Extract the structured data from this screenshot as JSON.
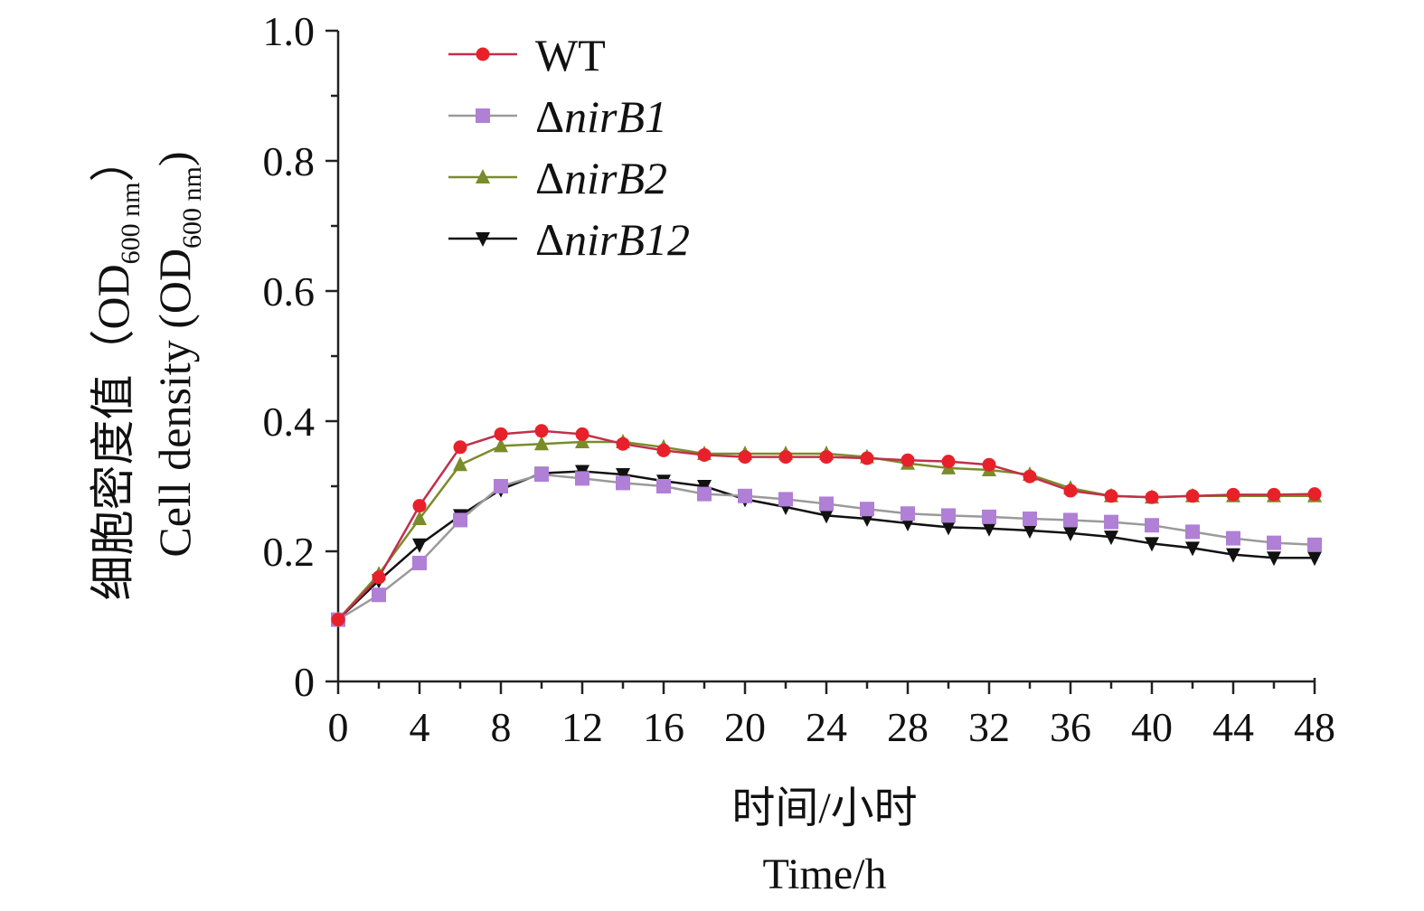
{
  "chart_data": {
    "type": "line",
    "xlabel_cn": "时间/小时",
    "xlabel_en": "Time/h",
    "ylabel_cn": "细胞密度值（OD",
    "ylabel_cn_sub": "600 nm",
    "ylabel_cn_end": "）",
    "ylabel_en": "Cell density (OD",
    "ylabel_en_sub": "600 nm",
    "ylabel_en_end": ")",
    "xlim": [
      0,
      48
    ],
    "ylim": [
      0,
      1.0
    ],
    "x_ticks": [
      0,
      4,
      8,
      12,
      16,
      20,
      24,
      28,
      32,
      36,
      40,
      44,
      48
    ],
    "y_ticks": [
      0,
      0.2,
      0.4,
      0.6,
      0.8,
      1.0
    ],
    "y_tick_labels": [
      "0",
      "0.2",
      "0.4",
      "0.6",
      "0.8",
      "1.0"
    ],
    "legend_position": "top-left",
    "grid": false,
    "x": [
      0,
      2,
      4,
      6,
      8,
      10,
      12,
      14,
      16,
      18,
      20,
      22,
      24,
      26,
      28,
      30,
      32,
      34,
      36,
      38,
      40,
      42,
      44,
      46,
      48
    ],
    "series": [
      {
        "name_prefix": "Δ",
        "name": "WT",
        "italic": false,
        "color": "#e8202a",
        "line_color": "#c0304a",
        "marker": "circle",
        "values": [
          0.095,
          0.16,
          0.27,
          0.36,
          0.38,
          0.385,
          0.38,
          0.365,
          0.355,
          0.348,
          0.345,
          0.345,
          0.345,
          0.343,
          0.34,
          0.338,
          0.333,
          0.315,
          0.293,
          0.285,
          0.283,
          0.285,
          0.287,
          0.287,
          0.288
        ]
      },
      {
        "name_prefix": "Δ",
        "name": "nirB1",
        "italic": true,
        "color": "#b07fd6",
        "line_color": "#9a9a9a",
        "marker": "square",
        "values": [
          0.095,
          0.133,
          0.182,
          0.248,
          0.3,
          0.318,
          0.312,
          0.305,
          0.3,
          0.288,
          0.285,
          0.28,
          0.273,
          0.265,
          0.258,
          0.255,
          0.253,
          0.25,
          0.248,
          0.245,
          0.24,
          0.23,
          0.22,
          0.213,
          0.21
        ]
      },
      {
        "name_prefix": "Δ",
        "name": "nirB2",
        "italic": true,
        "color": "#7a8c2a",
        "line_color": "#7a8c2a",
        "marker": "triangle-up",
        "values": [
          0.095,
          0.165,
          0.25,
          0.333,
          0.362,
          0.365,
          0.368,
          0.368,
          0.36,
          0.35,
          0.35,
          0.35,
          0.35,
          0.345,
          0.335,
          0.328,
          0.325,
          0.318,
          0.297,
          0.285,
          0.283,
          0.285,
          0.285,
          0.285,
          0.285
        ]
      },
      {
        "name_prefix": "Δ",
        "name": "nirB12",
        "italic": true,
        "color": "#111111",
        "line_color": "#111111",
        "marker": "triangle-down",
        "values": [
          0.095,
          0.155,
          0.21,
          0.255,
          0.295,
          0.32,
          0.323,
          0.318,
          0.308,
          0.3,
          0.28,
          0.268,
          0.255,
          0.25,
          0.243,
          0.237,
          0.235,
          0.232,
          0.228,
          0.222,
          0.212,
          0.205,
          0.195,
          0.19,
          0.19
        ]
      }
    ]
  }
}
